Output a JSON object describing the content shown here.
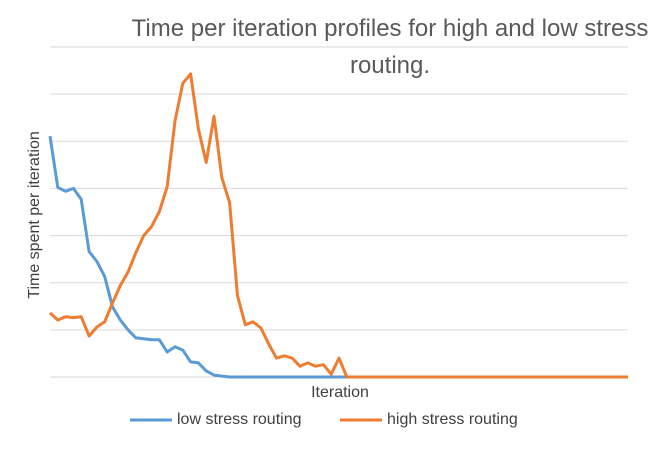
{
  "chart_data": {
    "type": "line",
    "title": "Time per iteration profiles for high and low stress routing.",
    "x_label": "Iteration",
    "y_label": "Time spent per iteration",
    "ylim": [
      0,
      7
    ],
    "yticks": [
      0,
      1,
      2,
      3,
      4,
      5,
      6,
      7
    ],
    "grid": true,
    "legend": "bottom",
    "series": [
      {
        "name": "low stress routing",
        "color": "#5b9bd5",
        "values": [
          5.11,
          4.02,
          3.94,
          4.0,
          3.77,
          2.66,
          2.45,
          2.13,
          1.49,
          1.21,
          1.0,
          0.83,
          0.81,
          0.79,
          0.79,
          0.53,
          0.64,
          0.57,
          0.32,
          0.3,
          0.13,
          0.04,
          0.02,
          0,
          0,
          0,
          0,
          0,
          0,
          0,
          0,
          0,
          0,
          0,
          0,
          0,
          0,
          0,
          0,
          0,
          0,
          0,
          0,
          0,
          0,
          0,
          0,
          0,
          0,
          0,
          0,
          0,
          0,
          0,
          0,
          0,
          0,
          0,
          0,
          0,
          0,
          0,
          0,
          0,
          0,
          0,
          0,
          0,
          0,
          0,
          0,
          0,
          0,
          0,
          0
        ]
      },
      {
        "name": "high stress routing",
        "color": "#ed7d31",
        "values": [
          1.36,
          1.21,
          1.28,
          1.26,
          1.28,
          0.87,
          1.06,
          1.17,
          1.57,
          1.94,
          2.23,
          2.64,
          3.0,
          3.19,
          3.51,
          4.04,
          5.43,
          6.23,
          6.43,
          5.26,
          4.55,
          5.53,
          4.23,
          3.7,
          1.72,
          1.11,
          1.17,
          1.04,
          0.7,
          0.4,
          0.45,
          0.4,
          0.23,
          0.3,
          0.23,
          0.26,
          0.06,
          0.4,
          0,
          0,
          0,
          0,
          0,
          0,
          0,
          0,
          0,
          0,
          0,
          0,
          0,
          0,
          0,
          0,
          0,
          0,
          0,
          0,
          0,
          0,
          0,
          0,
          0,
          0,
          0,
          0,
          0,
          0,
          0,
          0,
          0,
          0,
          0,
          0,
          0
        ]
      }
    ]
  }
}
